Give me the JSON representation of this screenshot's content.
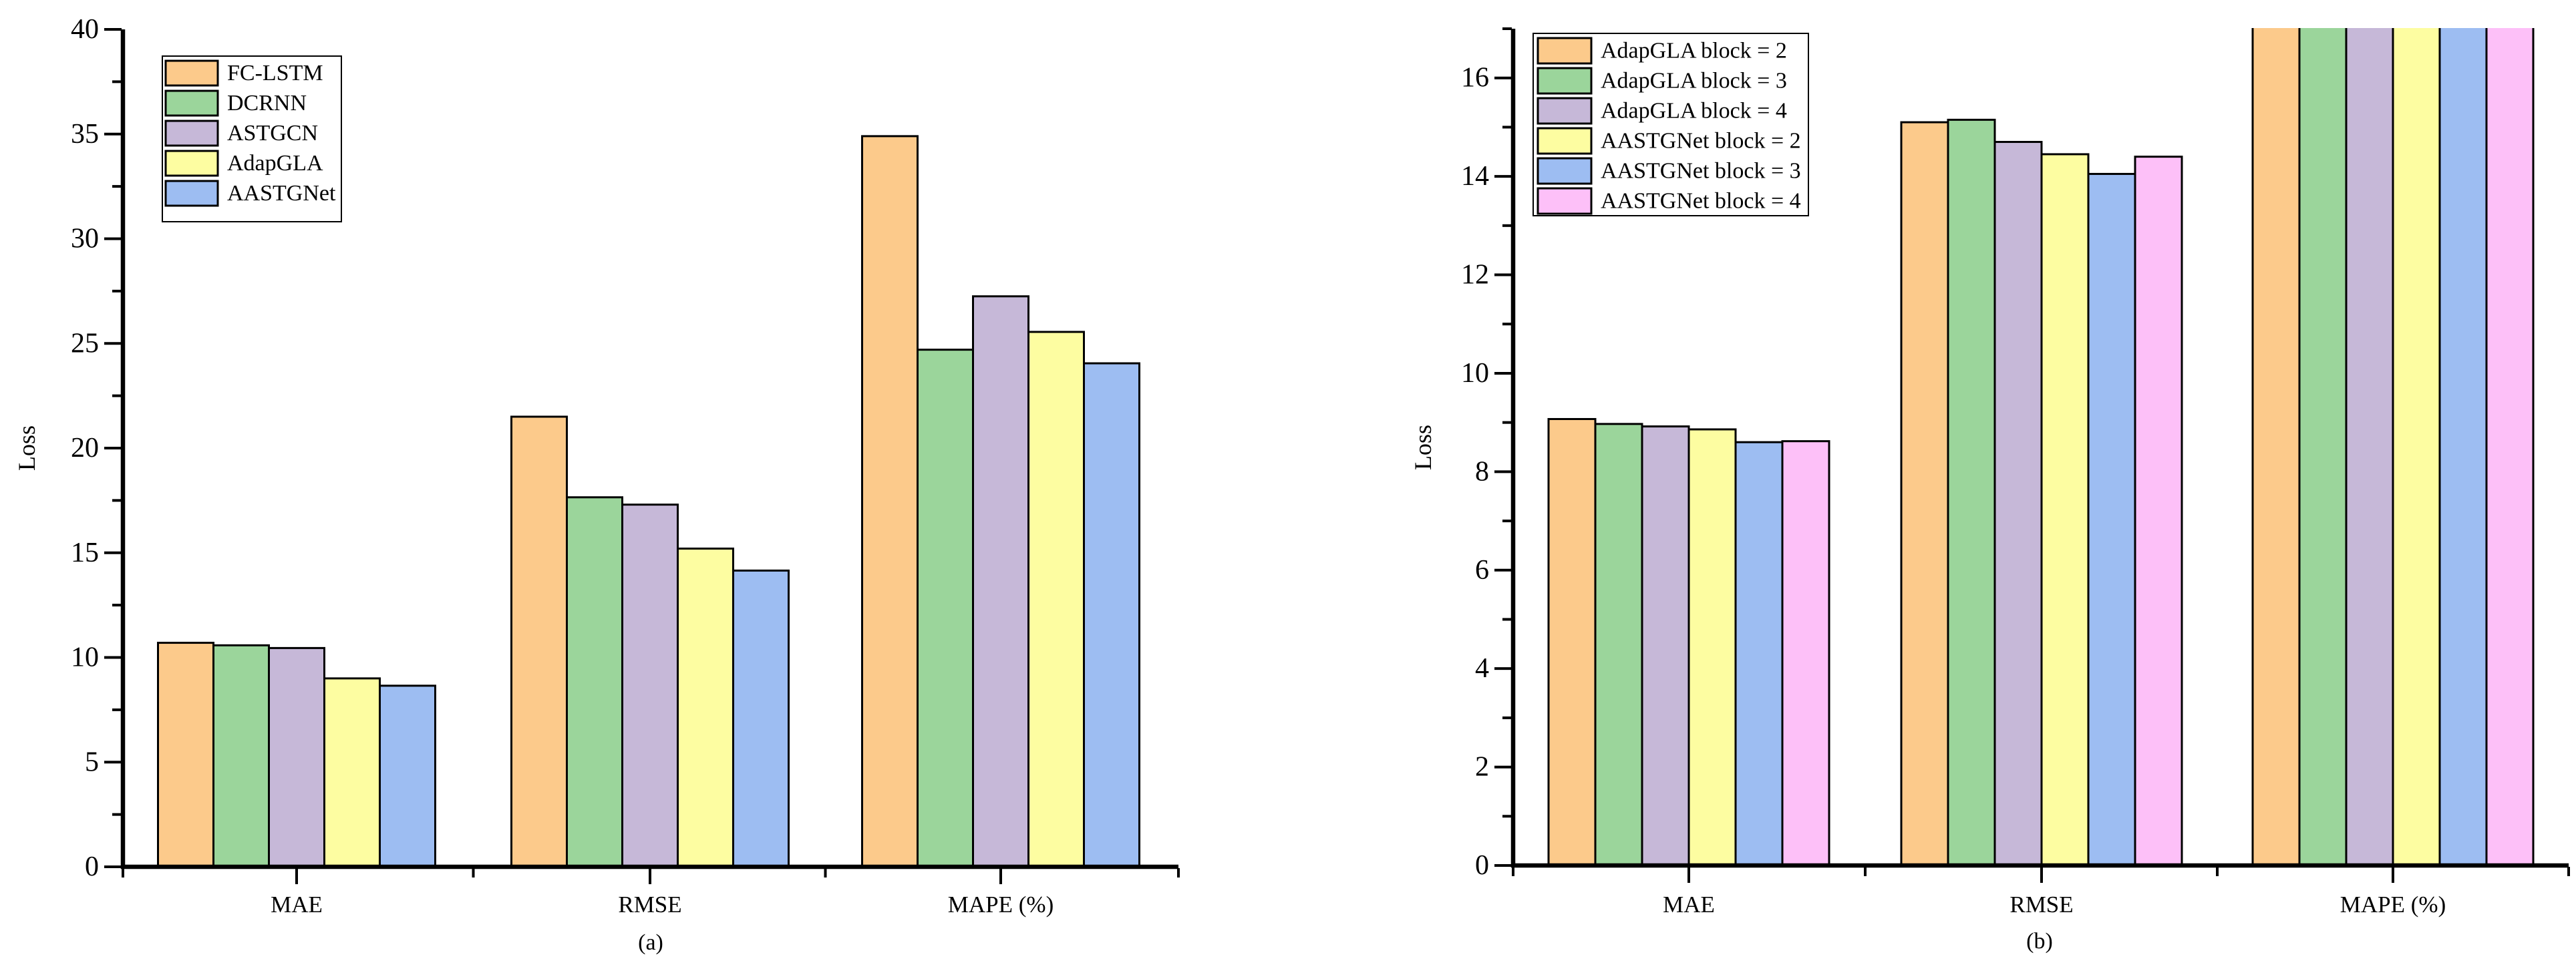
{
  "figure": {
    "background": "#ffffff",
    "palette": {
      "orange": "#FCCA8B",
      "green": "#9BD59B",
      "purple": "#C6B8D8",
      "yellow": "#FDFDA1",
      "blue": "#9DBDF2",
      "pink": "#FDC0F8",
      "bar_border": "#000000",
      "axis": "#000000"
    }
  },
  "chart_data": [
    {
      "id": "a",
      "type": "bar",
      "caption": "(a)",
      "ylabel": "Loss",
      "xlabel": "",
      "categories": [
        "MAE",
        "RMSE",
        "MAPE (%)"
      ],
      "ylim": [
        0,
        40
      ],
      "ytick_step": 5,
      "yminor_step": 2.5,
      "grid": false,
      "legend_position": "upper-left-inside",
      "series": [
        {
          "name": "FC-LSTM",
          "color": "#FCCA8B",
          "values": [
            10.7,
            21.5,
            34.9
          ],
          "clipped": []
        },
        {
          "name": "DCRNN",
          "color": "#9BD59B",
          "values": [
            10.58,
            17.65,
            24.7
          ],
          "clipped": []
        },
        {
          "name": "ASTGCN",
          "color": "#C6B8D8",
          "values": [
            10.45,
            17.3,
            27.25
          ],
          "clipped": []
        },
        {
          "name": "AdapGLA",
          "color": "#FDFDA1",
          "values": [
            9.0,
            15.2,
            25.55
          ],
          "clipped": []
        },
        {
          "name": "AASTGNet",
          "color": "#9DBDF2",
          "values": [
            8.65,
            14.15,
            24.05
          ],
          "clipped": []
        }
      ]
    },
    {
      "id": "b",
      "type": "bar",
      "caption": "(b)",
      "ylabel": "Loss",
      "xlabel": "",
      "categories": [
        "MAE",
        "RMSE",
        "MAPE (%)"
      ],
      "ylim": [
        0,
        17
      ],
      "ytick_step": 2,
      "yminor_step": 1,
      "grid": false,
      "legend_position": "upper-left-inside",
      "note": "All MAPE (%) bars exceed the y-axis maximum of 17 and are clipped at the top of the plot.",
      "series": [
        {
          "name": "AdapGLA block = 2",
          "color": "#FCCA8B",
          "values": [
            9.07,
            15.1,
            17
          ],
          "clipped": [
            2
          ]
        },
        {
          "name": "AdapGLA block = 3",
          "color": "#9BD59B",
          "values": [
            8.97,
            15.15,
            17
          ],
          "clipped": [
            2
          ]
        },
        {
          "name": "AdapGLA block = 4",
          "color": "#C6B8D8",
          "values": [
            8.92,
            14.7,
            17
          ],
          "clipped": [
            2
          ]
        },
        {
          "name": "AASTGNet block = 2",
          "color": "#FDFDA1",
          "values": [
            8.86,
            14.45,
            17
          ],
          "clipped": [
            2
          ]
        },
        {
          "name": "AASTGNet block = 3",
          "color": "#9DBDF2",
          "values": [
            8.6,
            14.05,
            17
          ],
          "clipped": [
            2
          ]
        },
        {
          "name": "AASTGNet block = 4",
          "color": "#FDC0F8",
          "values": [
            8.62,
            14.4,
            17
          ],
          "clipped": [
            2
          ]
        }
      ]
    }
  ]
}
